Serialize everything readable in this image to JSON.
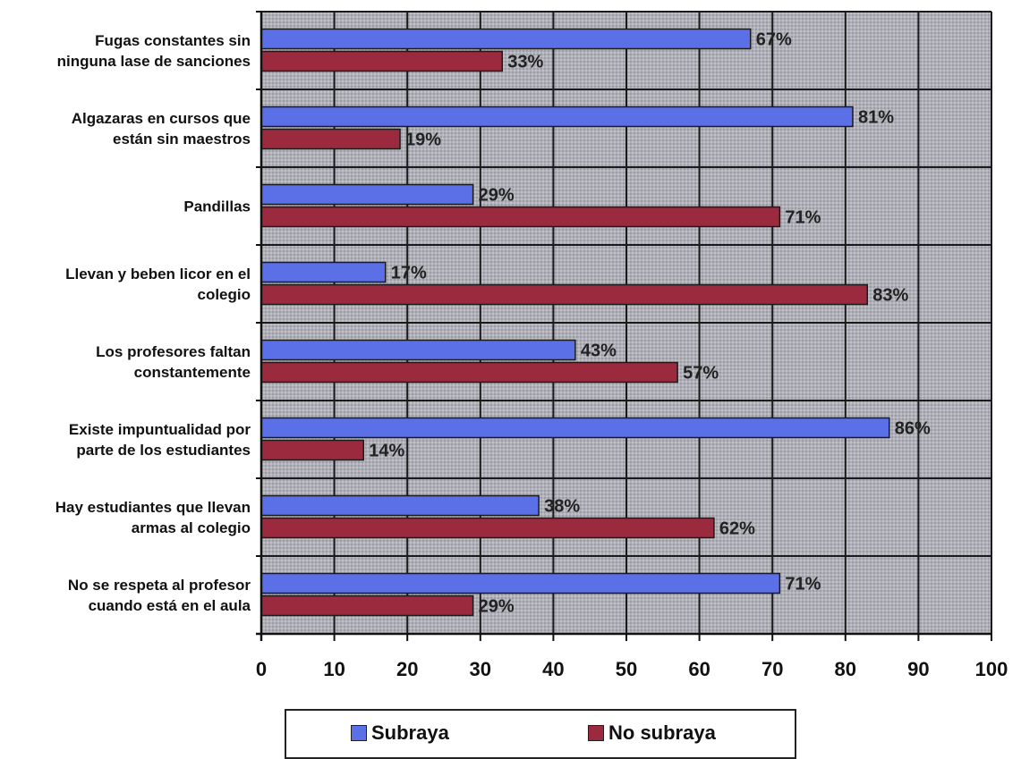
{
  "chart_data": {
    "type": "bar",
    "orientation": "horizontal",
    "categories": [
      [
        "Fugas constantes sin",
        "ninguna lase de sanciones"
      ],
      [
        "Algazaras en cursos que",
        "están sin maestros"
      ],
      [
        "Pandillas"
      ],
      [
        "Llevan y beben licor en el",
        "colegio"
      ],
      [
        "Los profesores faltan",
        "constantemente"
      ],
      [
        "Existe impuntualidad por",
        "parte de los estudiantes"
      ],
      [
        "Hay estudiantes que llevan",
        "armas al colegio"
      ],
      [
        "No se respeta al profesor",
        "cuando está en el aula"
      ]
    ],
    "series": [
      {
        "name": "Subraya",
        "values": [
          67,
          81,
          29,
          17,
          43,
          86,
          38,
          71
        ],
        "labels": [
          "67%",
          "81%",
          "29%",
          "17%",
          "43%",
          "86%",
          "38%",
          "71%"
        ],
        "color": "#5b6fe6"
      },
      {
        "name": "No subraya",
        "values": [
          33,
          19,
          71,
          83,
          57,
          14,
          62,
          29
        ],
        "labels": [
          "33%",
          "19%",
          "71%",
          "83%",
          "57%",
          "14%",
          "62%",
          "29%"
        ],
        "color": "#9b2a3e"
      }
    ],
    "xlim": [
      0,
      100
    ],
    "xticks": [
      "0",
      "10",
      "20",
      "30",
      "40",
      "50",
      "60",
      "70",
      "80",
      "90",
      "100"
    ],
    "grid": true,
    "legend_position": "bottom",
    "plot_background": "#a8a8b0"
  }
}
